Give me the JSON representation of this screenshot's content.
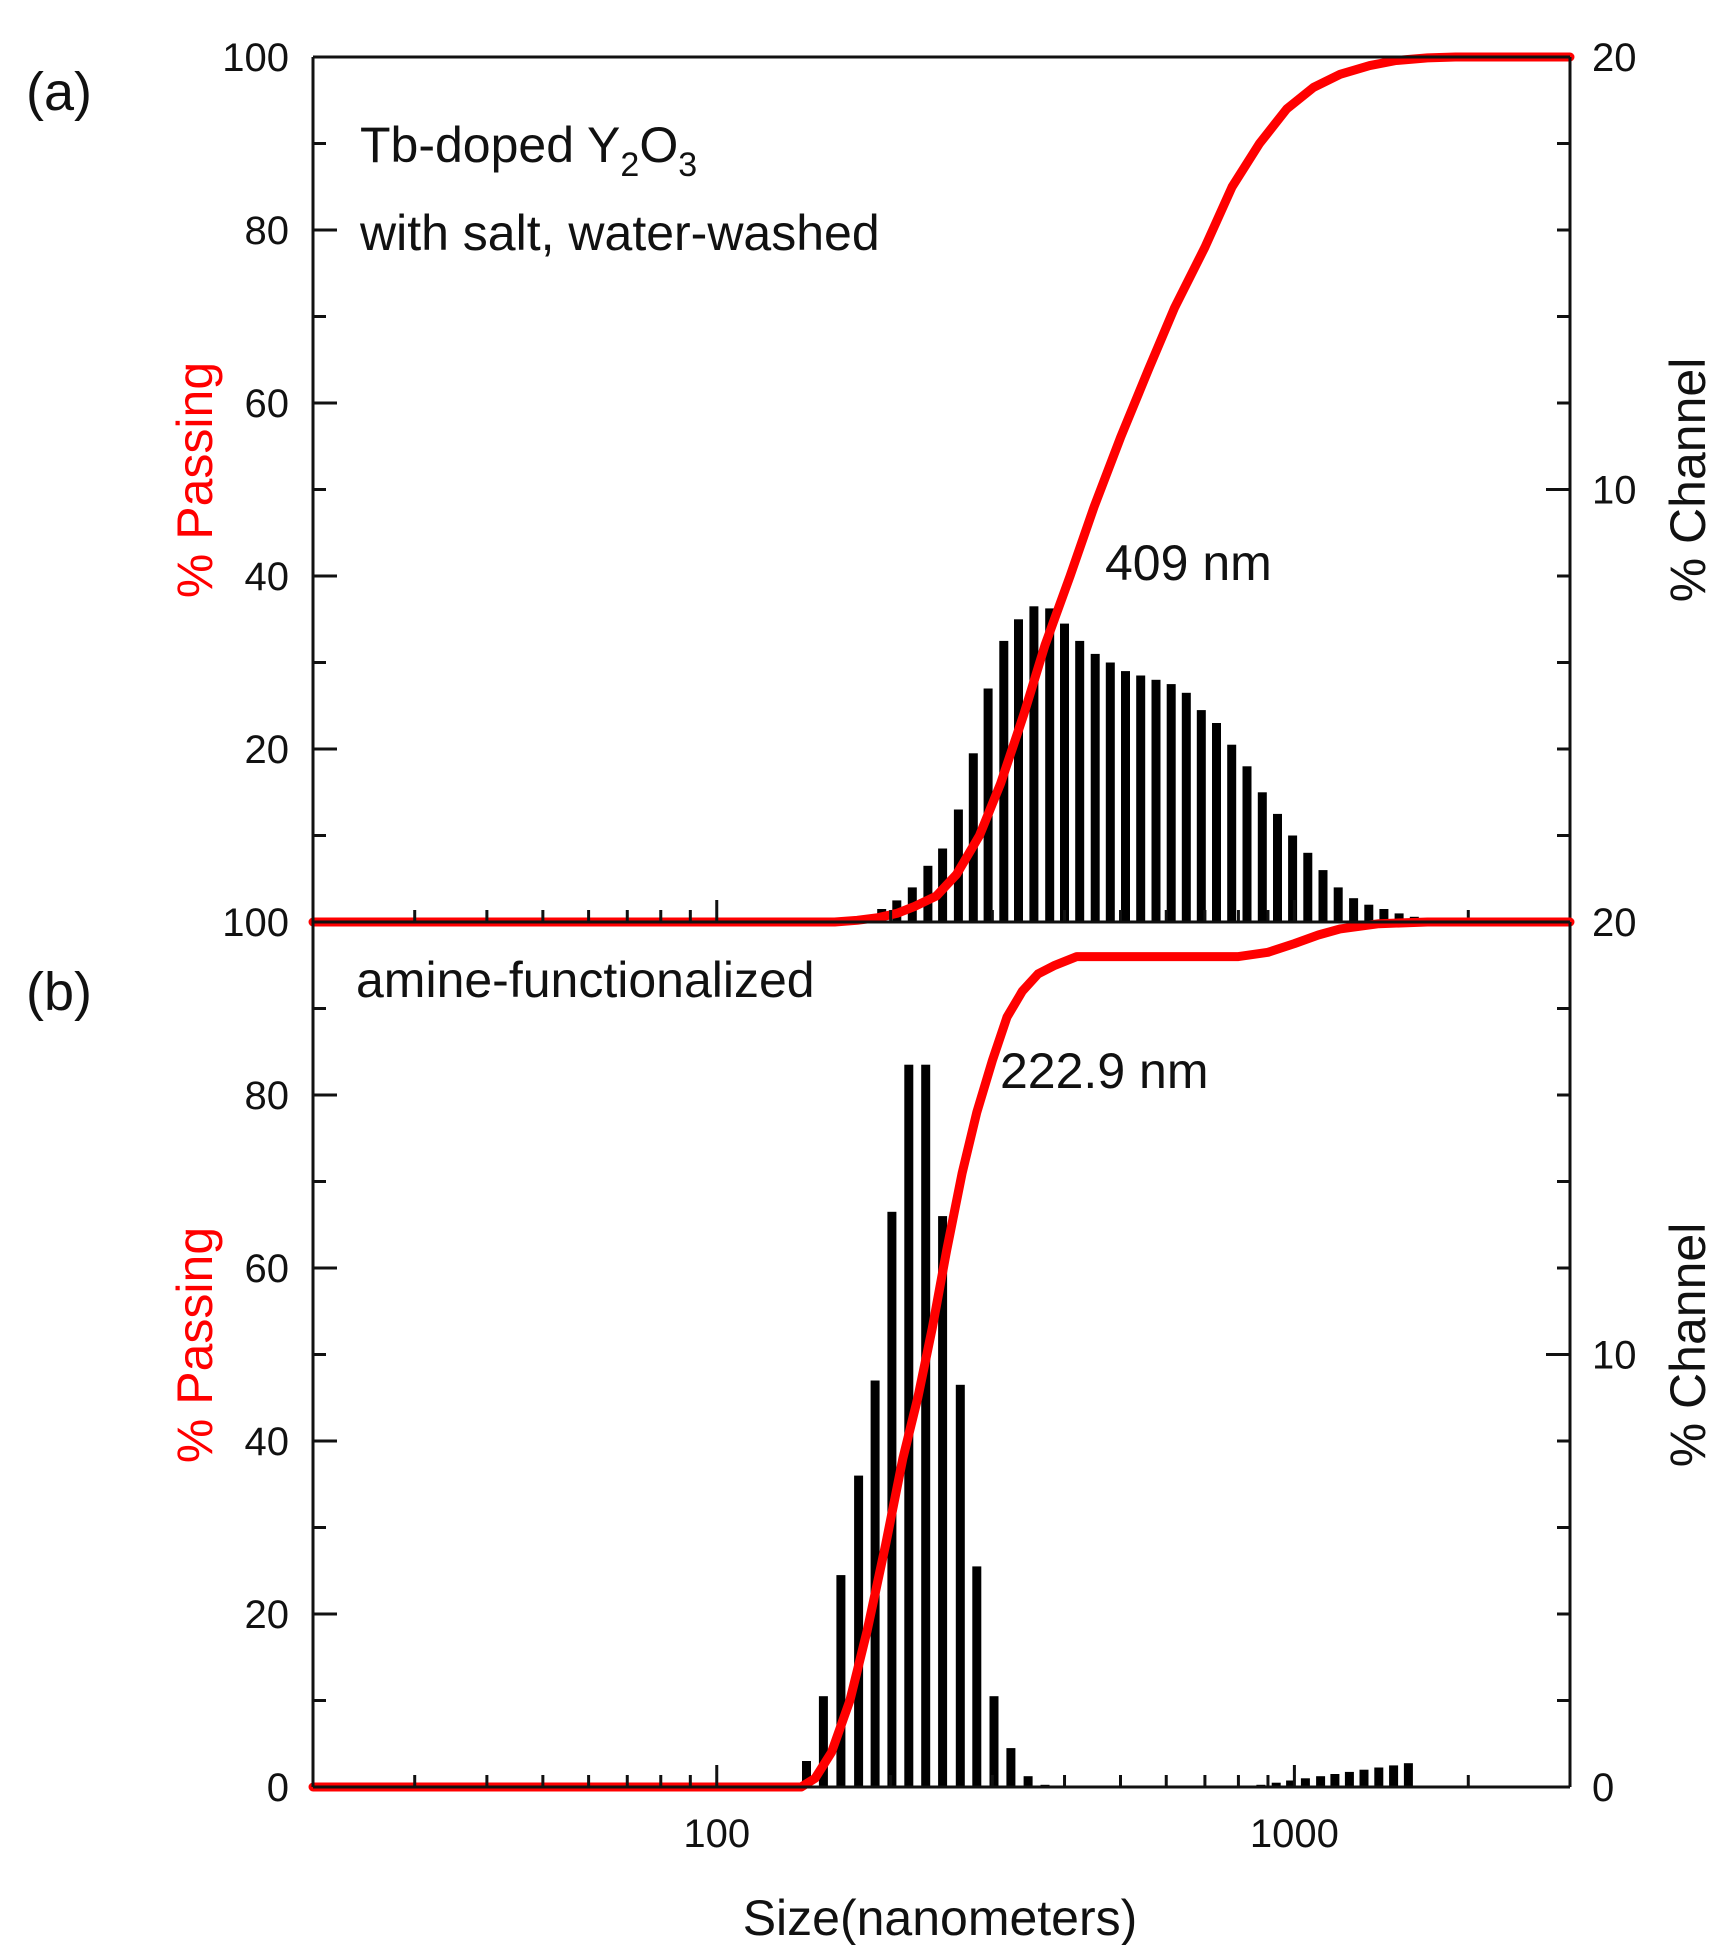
{
  "colors": {
    "cumulative": "#ff0000",
    "bars": "#000000",
    "axis": "#111111"
  },
  "chart_data": [
    {
      "type": "bar",
      "panel_label": "(a)",
      "title_line1_prefix": "Tb-doped Y",
      "title_sub1": "2",
      "title_mid": "O",
      "title_sub2": "3",
      "title_line2": "with salt, water-washed",
      "annotation": "409 nm",
      "xlabel": "Size(nanometers)",
      "ylabel_left": "% Passing",
      "ylabel_right": "% Channel",
      "xscale": "log",
      "xlim": [
        20,
        3000
      ],
      "ylim_left": [
        0,
        100
      ],
      "ylim_right": [
        0,
        20
      ],
      "left_tick_labels": [
        "20",
        "40",
        "60",
        "80",
        "100"
      ],
      "right_tick_labels": [
        "10",
        "20"
      ],
      "series": [
        {
          "name": "% Channel",
          "axis": "right",
          "x": [
            182,
            193,
            205,
            218,
            232,
            246,
            262,
            278,
            295,
            314,
            333,
            354,
            377,
            400,
            425,
            452,
            480,
            510,
            542,
            576,
            612,
            650,
            690,
            733,
            779,
            828,
            880,
            935,
            993,
            1055,
            1121,
            1191,
            1266,
            1345,
            1429,
            1518,
            1613,
            1713
          ],
          "values": [
            0.15,
            0.3,
            0.5,
            0.8,
            1.3,
            1.7,
            2.6,
            3.9,
            5.4,
            6.5,
            7.0,
            7.3,
            7.25,
            6.9,
            6.5,
            6.2,
            6.0,
            5.8,
            5.7,
            5.6,
            5.5,
            5.3,
            4.9,
            4.6,
            4.1,
            3.6,
            3.0,
            2.5,
            2.0,
            1.6,
            1.2,
            0.8,
            0.55,
            0.4,
            0.3,
            0.2,
            0.12,
            0.08
          ]
        },
        {
          "name": "% Passing",
          "axis": "left",
          "x": [
            20,
            160,
            175,
            190,
            205,
            220,
            240,
            260,
            285,
            310,
            340,
            370,
            409,
            450,
            500,
            560,
            620,
            700,
            780,
            870,
            970,
            1080,
            1200,
            1350,
            1500,
            1700,
            1900,
            2200,
            3000
          ],
          "values": [
            0,
            0,
            0.2,
            0.5,
            1.0,
            1.8,
            3.0,
            5.5,
            10,
            16,
            24,
            32,
            40,
            48,
            56,
            64,
            71,
            78,
            85,
            90,
            94,
            96.5,
            98,
            99,
            99.6,
            99.9,
            100,
            100,
            100
          ]
        }
      ]
    },
    {
      "type": "bar",
      "panel_label": "(b)",
      "title": "amine-functionalized",
      "annotation": "222.9 nm",
      "xlabel": "Size(nanometers)",
      "ylabel_left": "% Passing",
      "ylabel_right": "% Channel",
      "xscale": "log",
      "xlim": [
        20,
        3000
      ],
      "ylim_left": [
        0,
        100
      ],
      "ylim_right": [
        0,
        20
      ],
      "left_tick_labels": [
        "0",
        "20",
        "40",
        "60",
        "80",
        "100"
      ],
      "right_tick_labels": [
        "0",
        "10",
        "20"
      ],
      "x_tick_labels": [
        "100",
        "1000"
      ],
      "series": [
        {
          "name": "% Channel",
          "axis": "right",
          "x": [
            143,
            153,
            164,
            176,
            188,
            201,
            215,
            230,
            246,
            264,
            282,
            302,
            323,
            346,
            370,
            396,
            875,
            930,
            985,
            1045,
            1110,
            1175,
            1245,
            1320,
            1400,
            1485,
            1575
          ],
          "values": [
            0.6,
            2.1,
            4.9,
            7.2,
            9.4,
            13.3,
            16.7,
            16.7,
            13.2,
            9.3,
            5.1,
            2.1,
            0.9,
            0.25,
            0.05,
            0,
            0.05,
            0.1,
            0.15,
            0.2,
            0.25,
            0.3,
            0.35,
            0.4,
            0.45,
            0.5,
            0.55
          ],
          "note": "right-end small tail bars"
        },
        {
          "name": "% Passing",
          "axis": "left",
          "x": [
            20,
            140,
            148,
            158,
            170,
            182,
            196,
            210,
            222.9,
            236,
            250,
            266,
            282,
            300,
            318,
            338,
            360,
            385,
            420,
            500,
            600,
            700,
            800,
            900,
            1000,
            1100,
            1200,
            1400,
            1700,
            3000
          ],
          "values": [
            0,
            0,
            1,
            4,
            10,
            18,
            28,
            38,
            45,
            53,
            62,
            71,
            78,
            84,
            89,
            92,
            94,
            95,
            96,
            96,
            96,
            96,
            96,
            96.5,
            97.5,
            98.5,
            99.2,
            99.8,
            100,
            100
          ]
        }
      ]
    }
  ]
}
